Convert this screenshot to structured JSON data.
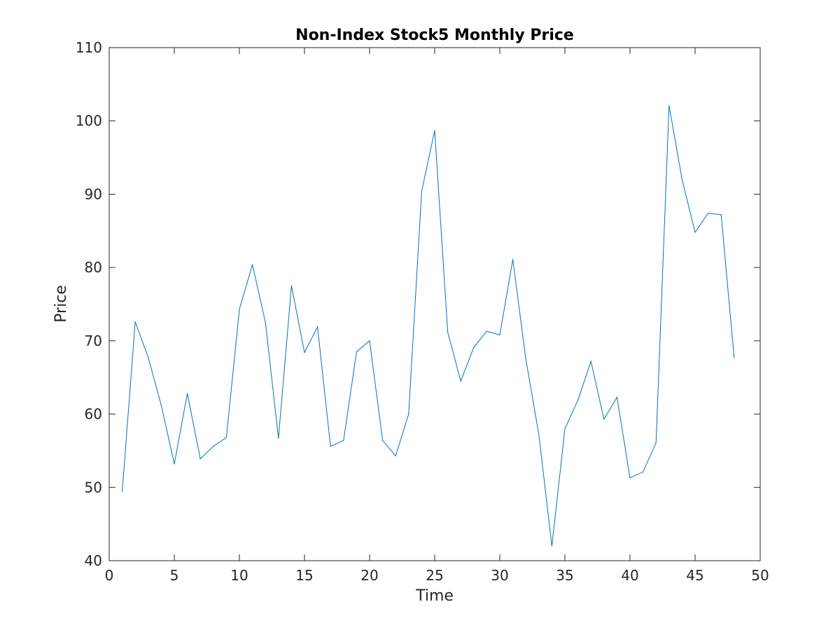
{
  "chart_data": {
    "type": "line",
    "title": "Non-Index Stock5 Monthly Price",
    "xlabel": "Time",
    "ylabel": "Price",
    "xlim": [
      0,
      50
    ],
    "ylim": [
      40,
      110
    ],
    "xticks": [
      0,
      5,
      10,
      15,
      20,
      25,
      30,
      35,
      40,
      45,
      50
    ],
    "yticks": [
      40,
      50,
      60,
      70,
      80,
      90,
      100,
      110
    ],
    "grid": false,
    "line_color": "#0072BD",
    "series": [
      {
        "x": [
          1,
          2,
          3,
          4,
          5,
          6,
          7,
          8,
          9,
          10,
          11,
          12,
          13,
          14,
          15,
          16,
          17,
          18,
          19,
          20,
          21,
          22,
          23,
          24,
          25,
          26,
          27,
          28,
          29,
          30,
          31,
          32,
          33,
          34,
          35,
          36,
          37,
          38,
          39,
          40,
          41,
          42,
          43,
          44,
          45,
          46,
          47,
          48
        ],
        "values": [
          49.4,
          72.6,
          67.7,
          61.2,
          53.2,
          62.8,
          53.9,
          55.6,
          56.8,
          74.3,
          80.4,
          72.5,
          56.7,
          77.5,
          68.4,
          71.9,
          55.6,
          56.4,
          68.5,
          70.0,
          56.4,
          54.3,
          60.0,
          90.4,
          98.7,
          71.2,
          64.5,
          69.1,
          71.3,
          70.8,
          81.1,
          67.5,
          57.2,
          42.0,
          58.0,
          61.9,
          67.2,
          59.3,
          62.3,
          51.3,
          52.1,
          56.1,
          102.1,
          92.0,
          84.8,
          87.4,
          87.2,
          67.7
        ]
      }
    ]
  }
}
